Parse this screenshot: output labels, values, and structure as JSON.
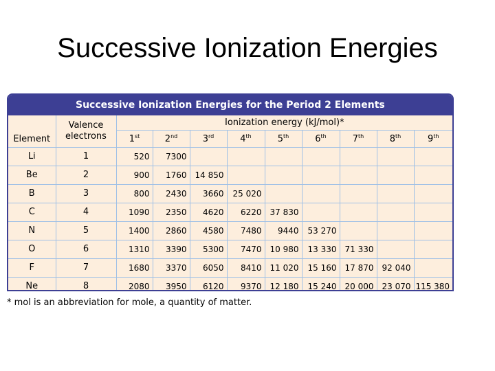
{
  "slide_title": "Successive Ionization Energies",
  "table": {
    "caption": "Successive Ionization Energies for the Period 2 Elements",
    "element_header": "Element",
    "valence_header_line1": "Valence",
    "valence_header_line2": "electrons",
    "ie_header": "Ionization energy (kJ/mol)*",
    "ordinals": [
      {
        "n": "1",
        "suffix": "st"
      },
      {
        "n": "2",
        "suffix": "nd"
      },
      {
        "n": "3",
        "suffix": "rd"
      },
      {
        "n": "4",
        "suffix": "th"
      },
      {
        "n": "5",
        "suffix": "th"
      },
      {
        "n": "6",
        "suffix": "th"
      },
      {
        "n": "7",
        "suffix": "th"
      },
      {
        "n": "8",
        "suffix": "th"
      },
      {
        "n": "9",
        "suffix": "th"
      }
    ],
    "rows": [
      {
        "element": "Li",
        "valence": "1",
        "energies": [
          "520",
          "7300"
        ]
      },
      {
        "element": "Be",
        "valence": "2",
        "energies": [
          "900",
          "1760",
          "14 850"
        ]
      },
      {
        "element": "B",
        "valence": "3",
        "energies": [
          "800",
          "2430",
          "3660",
          "25 020"
        ]
      },
      {
        "element": "C",
        "valence": "4",
        "energies": [
          "1090",
          "2350",
          "4620",
          "6220",
          "37 830"
        ]
      },
      {
        "element": "N",
        "valence": "5",
        "energies": [
          "1400",
          "2860",
          "4580",
          "7480",
          "9440",
          "53 270"
        ]
      },
      {
        "element": "O",
        "valence": "6",
        "energies": [
          "1310",
          "3390",
          "5300",
          "7470",
          "10 980",
          "13 330",
          "71 330"
        ]
      },
      {
        "element": "F",
        "valence": "7",
        "energies": [
          "1680",
          "3370",
          "6050",
          "8410",
          "11 020",
          "15 160",
          "17 870",
          "92 040"
        ]
      },
      {
        "element": "Ne",
        "valence": "8",
        "energies": [
          "2080",
          "3950",
          "6120",
          "9370",
          "12 180",
          "15 240",
          "20 000",
          "23 070",
          "115 380"
        ]
      }
    ],
    "colors": {
      "header_band": "#3d3f94",
      "cell_fill": "#fdeedd",
      "grid": "#9fc0e6"
    }
  },
  "footnote": "* mol is an abbreviation for mole, a quantity of matter."
}
